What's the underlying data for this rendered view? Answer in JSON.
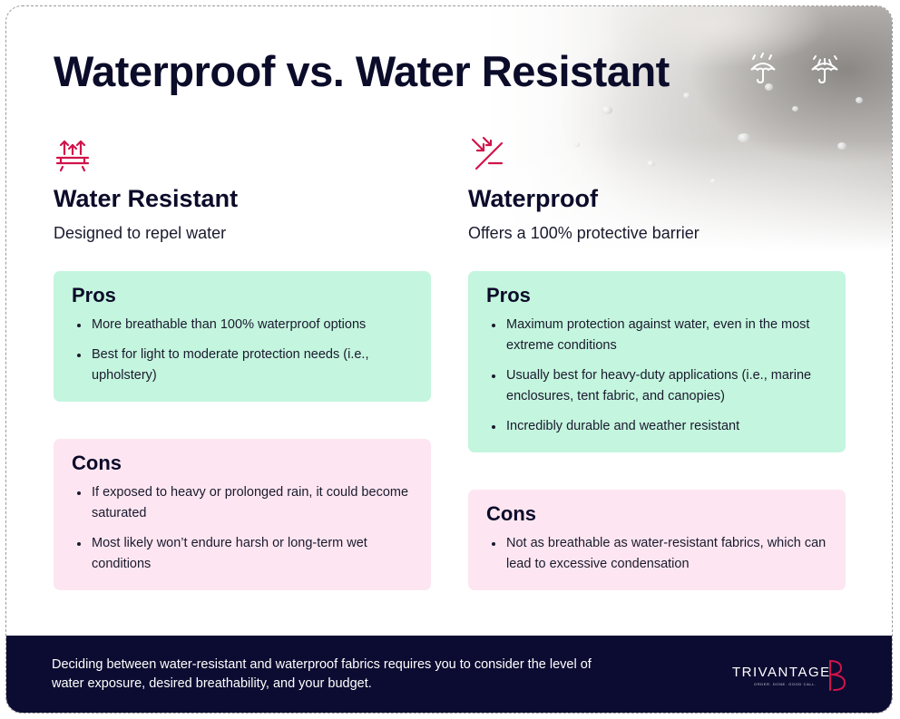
{
  "title": "Waterproof vs. Water Resistant",
  "icons": {
    "umbrella_rain": "umbrella-rain-icon",
    "umbrella_storm": "umbrella-storm-icon",
    "water_resistant": "water-resistant-icon",
    "waterproof": "waterproof-icon"
  },
  "colors": {
    "navy": "#0c0c32",
    "accent": "#d0134a",
    "pros_bg": "#c4f5de",
    "cons_bg": "#fde6f1"
  },
  "water_resistant": {
    "heading": "Water Resistant",
    "subtitle": "Designed to repel water",
    "pros": {
      "title": "Pros",
      "items": [
        "More breathable than 100% waterproof options",
        "Best for light to moderate protection needs (i.e., upholstery)"
      ]
    },
    "cons": {
      "title": "Cons",
      "items": [
        "If exposed to heavy or prolonged rain, it could become saturated",
        "Most likely won’t endure harsh or long-term wet conditions"
      ]
    }
  },
  "waterproof": {
    "heading": "Waterproof",
    "subtitle": "Offers a 100% protective barrier",
    "pros": {
      "title": "Pros",
      "items": [
        "Maximum protection against water, even in the most extreme conditions",
        "Usually best for heavy-duty applications (i.e., marine enclosures, tent fabric, and canopies)",
        "Incredibly durable and weather resistant"
      ]
    },
    "cons": {
      "title": "Cons",
      "items": [
        "Not as breathable as water-resistant fabrics, which can lead to excessive condensation"
      ]
    }
  },
  "footer": {
    "text": "Deciding between water-resistant and waterproof fabrics requires you to consider the level of water exposure, desired breathability, and your budget.",
    "logo_word": "TRIVANTAGE",
    "logo_tagline": "ORDER. DONE. GOOD CALL."
  }
}
